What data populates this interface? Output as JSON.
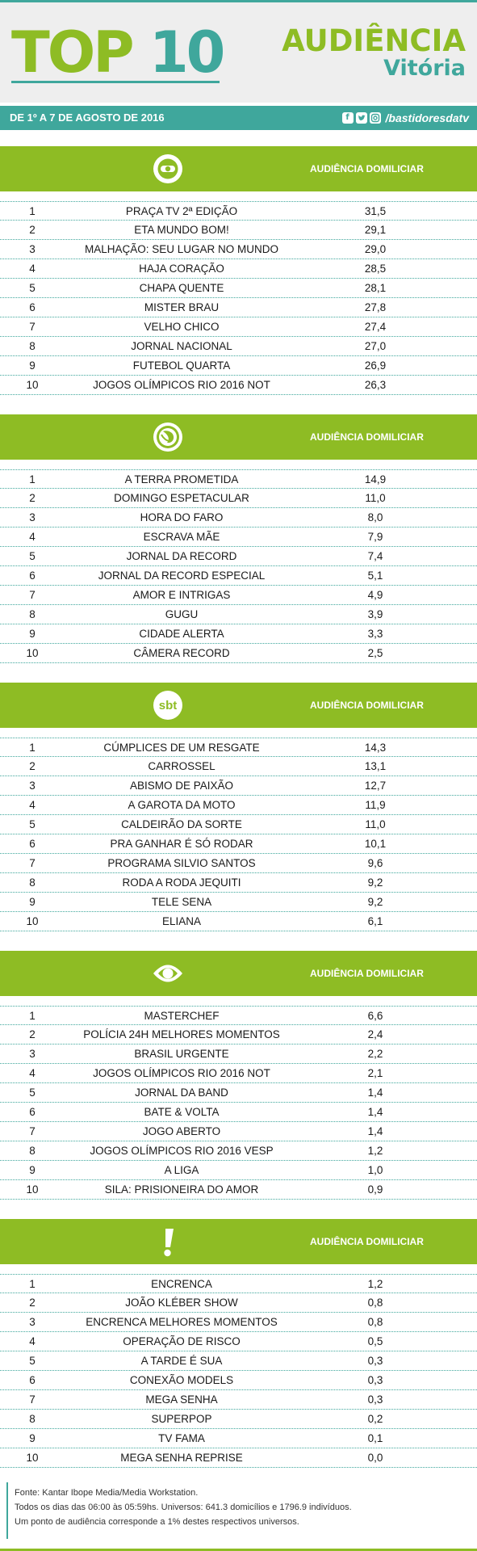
{
  "header": {
    "top": "TOP",
    "ten": "10",
    "audiencia": "AUDIÊNCIA",
    "city": "Vitória"
  },
  "datebar": {
    "date": "DE 1º A 7 DE AGOSTO DE 2016",
    "handle": "/bastidoresdatv",
    "icons": [
      "facebook-icon",
      "twitter-icon",
      "instagram-icon"
    ]
  },
  "colors": {
    "green": "#8ebc24",
    "teal": "#3fa79c"
  },
  "sections": [
    {
      "logo": "globo-logo",
      "heading": "AUDIÊNCIA DOMILICIAR",
      "rows": [
        {
          "rank": "1",
          "name": "PRAÇA TV 2ª EDIÇÃO",
          "value": "31,5"
        },
        {
          "rank": "2",
          "name": "ETA MUNDO BOM!",
          "value": "29,1"
        },
        {
          "rank": "3",
          "name": "MALHAÇÃO: SEU LUGAR NO MUNDO",
          "value": "29,0"
        },
        {
          "rank": "4",
          "name": "HAJA CORAÇÃO",
          "value": "28,5"
        },
        {
          "rank": "5",
          "name": "CHAPA QUENTE",
          "value": "28,1"
        },
        {
          "rank": "6",
          "name": "MISTER BRAU",
          "value": "27,8"
        },
        {
          "rank": "7",
          "name": "VELHO CHICO",
          "value": "27,4"
        },
        {
          "rank": "8",
          "name": "JORNAL NACIONAL",
          "value": "27,0"
        },
        {
          "rank": "9",
          "name": "FUTEBOL QUARTA",
          "value": "26,9"
        },
        {
          "rank": "10",
          "name": "JOGOS OLÍMPICOS RIO 2016 NOT",
          "value": "26,3"
        }
      ]
    },
    {
      "logo": "record-logo",
      "heading": "AUDIÊNCIA DOMILICIAR",
      "rows": [
        {
          "rank": "1",
          "name": "A TERRA PROMETIDA",
          "value": "14,9"
        },
        {
          "rank": "2",
          "name": "DOMINGO ESPETACULAR",
          "value": "11,0"
        },
        {
          "rank": "3",
          "name": "HORA DO FARO",
          "value": "8,0"
        },
        {
          "rank": "4",
          "name": "ESCRAVA MÃE",
          "value": "7,9"
        },
        {
          "rank": "5",
          "name": "JORNAL DA RECORD",
          "value": "7,4"
        },
        {
          "rank": "6",
          "name": "JORNAL DA RECORD ESPECIAL",
          "value": "5,1"
        },
        {
          "rank": "7",
          "name": "AMOR E INTRIGAS",
          "value": "4,9"
        },
        {
          "rank": "8",
          "name": "GUGU",
          "value": "3,9"
        },
        {
          "rank": "9",
          "name": "CIDADE ALERTA",
          "value": "3,3"
        },
        {
          "rank": "10",
          "name": "CÂMERA RECORD",
          "value": "2,5"
        }
      ]
    },
    {
      "logo": "sbt-logo",
      "logo_text": "sbt",
      "heading": "AUDIÊNCIA DOMILICIAR",
      "rows": [
        {
          "rank": "1",
          "name": "CÚMPLICES DE UM RESGATE",
          "value": "14,3"
        },
        {
          "rank": "2",
          "name": "CARROSSEL",
          "value": "13,1"
        },
        {
          "rank": "3",
          "name": "ABISMO DE PAIXÃO",
          "value": "12,7"
        },
        {
          "rank": "4",
          "name": "A GAROTA DA MOTO",
          "value": "11,9"
        },
        {
          "rank": "5",
          "name": "CALDEIRÃO DA SORTE",
          "value": "11,0"
        },
        {
          "rank": "6",
          "name": "PRA GANHAR É SÓ RODAR",
          "value": "10,1"
        },
        {
          "rank": "7",
          "name": "PROGRAMA SILVIO SANTOS",
          "value": "9,6"
        },
        {
          "rank": "8",
          "name": "RODA A RODA JEQUITI",
          "value": "9,2"
        },
        {
          "rank": "9",
          "name": "TELE SENA",
          "value": "9,2"
        },
        {
          "rank": "10",
          "name": "ELIANA",
          "value": "6,1"
        }
      ]
    },
    {
      "logo": "band-logo",
      "heading": "AUDIÊNCIA DOMILICIAR",
      "rows": [
        {
          "rank": "1",
          "name": "MASTERCHEF",
          "value": "6,6"
        },
        {
          "rank": "2",
          "name": "POLÍCIA 24H MELHORES MOMENTOS",
          "value": "2,4"
        },
        {
          "rank": "3",
          "name": "BRASIL URGENTE",
          "value": "2,2"
        },
        {
          "rank": "4",
          "name": "JOGOS OLÍMPICOS RIO 2016 NOT",
          "value": "2,1"
        },
        {
          "rank": "5",
          "name": "JORNAL DA BAND",
          "value": "1,4"
        },
        {
          "rank": "6",
          "name": "BATE & VOLTA",
          "value": "1,4"
        },
        {
          "rank": "7",
          "name": "JOGO ABERTO",
          "value": "1,4"
        },
        {
          "rank": "8",
          "name": "JOGOS OLÍMPICOS RIO 2016 VESP",
          "value": "1,2"
        },
        {
          "rank": "9",
          "name": "A LIGA",
          "value": "1,0"
        },
        {
          "rank": "10",
          "name": "SILA: PRISIONEIRA DO AMOR",
          "value": "0,9"
        }
      ]
    },
    {
      "logo": "redetv-logo",
      "heading": "AUDIÊNCIA DOMILICIAR",
      "rows": [
        {
          "rank": "1",
          "name": "ENCRENCA",
          "value": "1,2"
        },
        {
          "rank": "2",
          "name": "JOÃO KLÉBER SHOW",
          "value": "0,8"
        },
        {
          "rank": "3",
          "name": "ENCRENCA MELHORES MOMENTOS",
          "value": "0,8"
        },
        {
          "rank": "4",
          "name": "OPERAÇÃO DE RISCO",
          "value": "0,5"
        },
        {
          "rank": "5",
          "name": "A TARDE É SUA",
          "value": "0,3"
        },
        {
          "rank": "6",
          "name": "CONEXÃO MODELS",
          "value": "0,3"
        },
        {
          "rank": "7",
          "name": "MEGA SENHA",
          "value": "0,3"
        },
        {
          "rank": "8",
          "name": "SUPERPOP",
          "value": "0,2"
        },
        {
          "rank": "9",
          "name": "TV FAMA",
          "value": "0,1"
        },
        {
          "rank": "10",
          "name": "MEGA SENHA REPRISE",
          "value": "0,0"
        }
      ]
    }
  ],
  "footer": {
    "line1": "Fonte: Kantar Ibope Media/Media Workstation.",
    "line2": "Todos os dias das 06:00 às 05:59hs. Universos: 641.3 domicílios e 1796.9 indivíduos.",
    "line3": "Um ponto de audiência corresponde a 1% destes respectivos universos."
  }
}
